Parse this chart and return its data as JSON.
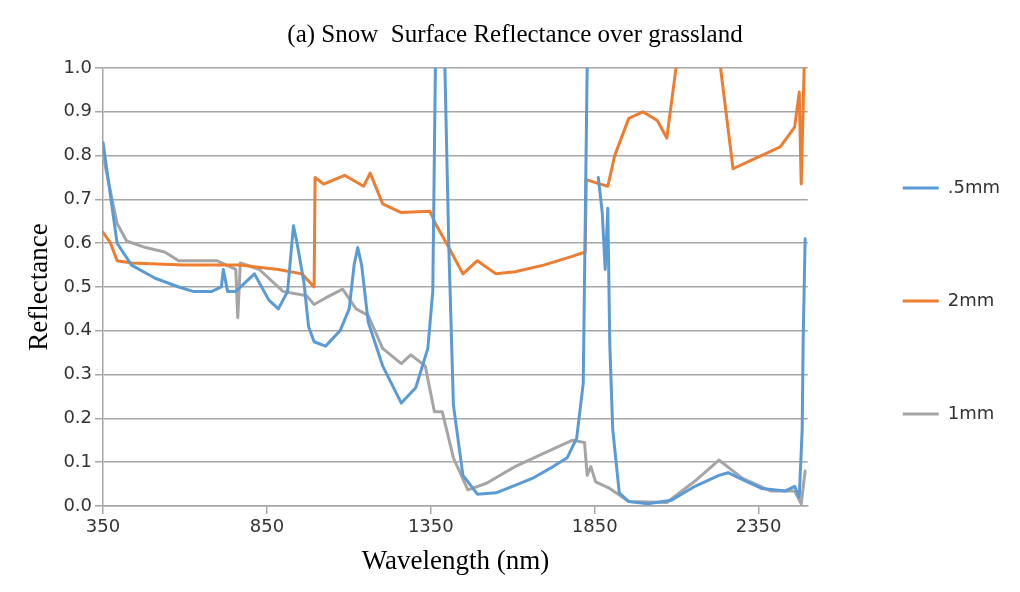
{
  "chart_data": {
    "type": "line",
    "title": "(a) Snow  Surface Reflectance over grassland",
    "xlabel": "Wavelength (nm)",
    "ylabel": "Reflectance",
    "xlim": [
      350,
      2500
    ],
    "xticks": [
      350,
      850,
      1350,
      1850,
      2350
    ],
    "ylim": [
      0,
      1
    ],
    "yticks": [
      {
        "value": 0,
        "label": "0.0"
      },
      0.1,
      0.2,
      0.3,
      0.4,
      0.5,
      0.6,
      0.7,
      0.8,
      0.9,
      {
        "value": 1,
        "label": "1.0"
      }
    ],
    "grid": "y",
    "legend": "right",
    "marker": "none",
    "line_style": "solid",
    "series": [
      {
        "name": ".5mm",
        "color": "#5b9bd5",
        "x": [
          350,
          393,
          437,
          509,
          581,
          625,
          682,
          711,
          717,
          730,
          755,
          812,
          856,
          885,
          913,
          931,
          942,
          963,
          977,
          994,
          1029,
          1073,
          1101,
          1116,
          1127,
          1139,
          1159,
          1203,
          1260,
          1304,
          1341,
          1356,
          1364,
          1380,
          1393,
          1405,
          1419,
          1448,
          1492,
          1549,
          1607,
          1665,
          1723,
          1766,
          1795,
          1815,
          1827,
          1845,
          1861,
          1873,
          1882,
          1890,
          1896,
          1905,
          1925,
          1954,
          2012,
          2084,
          2156,
          2229,
          2257,
          2301,
          2359,
          2431,
          2460,
          2474,
          2483,
          2486,
          2492
        ],
        "values": [
          0.83,
          0.6,
          0.55,
          0.52,
          0.5,
          0.49,
          0.49,
          0.5,
          0.54,
          0.49,
          0.49,
          0.53,
          0.47,
          0.45,
          0.49,
          0.64,
          0.6,
          0.51,
          0.41,
          0.375,
          0.365,
          0.4,
          0.45,
          0.55,
          0.59,
          0.55,
          0.42,
          0.32,
          0.235,
          0.27,
          0.36,
          0.49,
          1.0,
          null,
          1.0,
          0.59,
          0.23,
          0.07,
          0.027,
          0.03,
          0.047,
          0.065,
          0.09,
          0.11,
          0.155,
          0.28,
          1.0,
          null,
          0.75,
          0.67,
          0.54,
          0.68,
          0.37,
          0.175,
          0.03,
          0.01,
          0.005,
          0.013,
          0.045,
          0.07,
          0.076,
          0.06,
          0.04,
          0.034,
          0.045,
          0.02,
          0.175,
          0.38,
          0.61
        ]
      },
      {
        "name": "2mm",
        "color": "#ed7d31",
        "x": [
          350,
          373,
          393,
          437,
          596,
          769,
          885,
          957,
          994,
          997,
          1023,
          1087,
          1145,
          1165,
          1203,
          1260,
          1347,
          1364,
          1405,
          1448,
          1492,
          1549,
          1607,
          1694,
          1781,
          1821,
          1824,
          1867,
          1890,
          1911,
          1954,
          1997,
          2041,
          2070,
          2098,
          2160,
          2234,
          2272,
          2330,
          2416,
          2460,
          2474,
          2480,
          2489
        ],
        "values": [
          0.625,
          0.6,
          0.56,
          0.555,
          0.55,
          0.55,
          0.54,
          0.53,
          0.5,
          0.75,
          0.735,
          0.755,
          0.73,
          0.76,
          0.69,
          0.67,
          0.673,
          0.645,
          0.59,
          0.53,
          0.56,
          0.53,
          0.535,
          0.55,
          0.57,
          0.58,
          0.745,
          0.735,
          0.73,
          0.8,
          0.885,
          0.9,
          0.88,
          0.84,
          1.0,
          null,
          1.0,
          0.77,
          0.79,
          0.82,
          0.865,
          0.945,
          0.735,
          1.0
        ]
      },
      {
        "name": "1mm",
        "color": "#a5a5a5",
        "x": [
          350,
          393,
          422,
          480,
          538,
          581,
          639,
          697,
          755,
          761,
          769,
          827,
          899,
          971,
          994,
          1029,
          1081,
          1122,
          1159,
          1203,
          1260,
          1289,
          1333,
          1361,
          1385,
          1419,
          1463,
          1520,
          1607,
          1694,
          1781,
          1819,
          1827,
          1838,
          1853,
          1896,
          1954,
          2070,
          2156,
          2229,
          2301,
          2388,
          2460,
          2480,
          2492
        ],
        "values": [
          0.8,
          0.645,
          0.605,
          0.59,
          0.58,
          0.56,
          0.56,
          0.56,
          0.54,
          0.43,
          0.555,
          0.54,
          0.49,
          0.48,
          0.46,
          0.475,
          0.495,
          0.45,
          0.435,
          0.36,
          0.325,
          0.345,
          0.32,
          0.215,
          0.215,
          0.11,
          0.037,
          0.052,
          0.09,
          0.12,
          0.15,
          0.145,
          0.07,
          0.09,
          0.055,
          0.04,
          0.01,
          0.008,
          0.057,
          0.105,
          0.063,
          0.034,
          0.034,
          0.005,
          0.08
        ]
      }
    ]
  }
}
